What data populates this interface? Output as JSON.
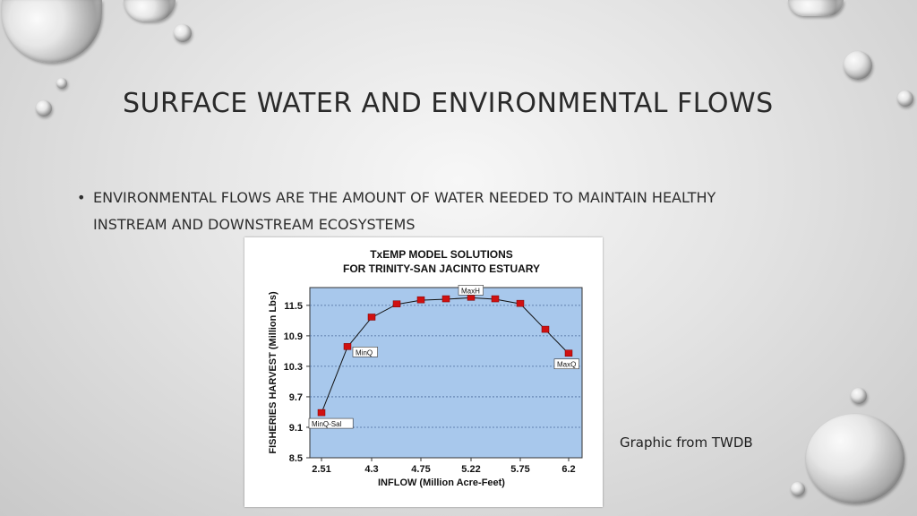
{
  "slide": {
    "title": "SURFACE WATER AND ENVIRONMENTAL FLOWS",
    "bullet": "ENVIRONMENTAL FLOWS ARE THE AMOUNT OF WATER NEEDED TO MAINTAIN HEALTHY INSTREAM AND DOWNSTREAM ECOSYSTEMS",
    "bullet_marker": "•",
    "credit": "Graphic from TWDB"
  },
  "chart_data": {
    "type": "line",
    "title_line1": "TxEMP MODEL SOLUTIONS",
    "title_line2": "FOR TRINITY-SAN JACINTO ESTUARY",
    "xlabel": "INFLOW (Million Acre-Feet)",
    "ylabel": "FISHERIES HARVEST (Million Lbs)",
    "x_ticks": [
      "2.51",
      "4.3",
      "4.75",
      "5.22",
      "5.75",
      "6.2"
    ],
    "y_ticks": [
      "8.5",
      "9.1",
      "9.7",
      "10.3",
      "10.9",
      "11.5"
    ],
    "ylim": [
      8.5,
      11.85
    ],
    "grid": true,
    "colors": {
      "plot_bg": "#a8c8ec",
      "marker": "#d01010",
      "line": "#111111"
    },
    "points": [
      {
        "x": 2.51,
        "y": 9.38
      },
      {
        "x": 3.8,
        "y": 10.68
      },
      {
        "x": 4.3,
        "y": 11.26
      },
      {
        "x": 4.53,
        "y": 11.52
      },
      {
        "x": 4.75,
        "y": 11.6
      },
      {
        "x": 4.98,
        "y": 11.62
      },
      {
        "x": 5.22,
        "y": 11.65
      },
      {
        "x": 5.48,
        "y": 11.62
      },
      {
        "x": 5.75,
        "y": 11.53
      },
      {
        "x": 6.0,
        "y": 11.02
      },
      {
        "x": 6.2,
        "y": 10.55
      }
    ],
    "annotations": [
      {
        "text": "MaxH",
        "point": 6
      },
      {
        "text": "MinQ",
        "point": 1
      },
      {
        "text": "MaxQ",
        "point": 10
      },
      {
        "text": "MinQ-Sal",
        "point": 0
      }
    ]
  }
}
